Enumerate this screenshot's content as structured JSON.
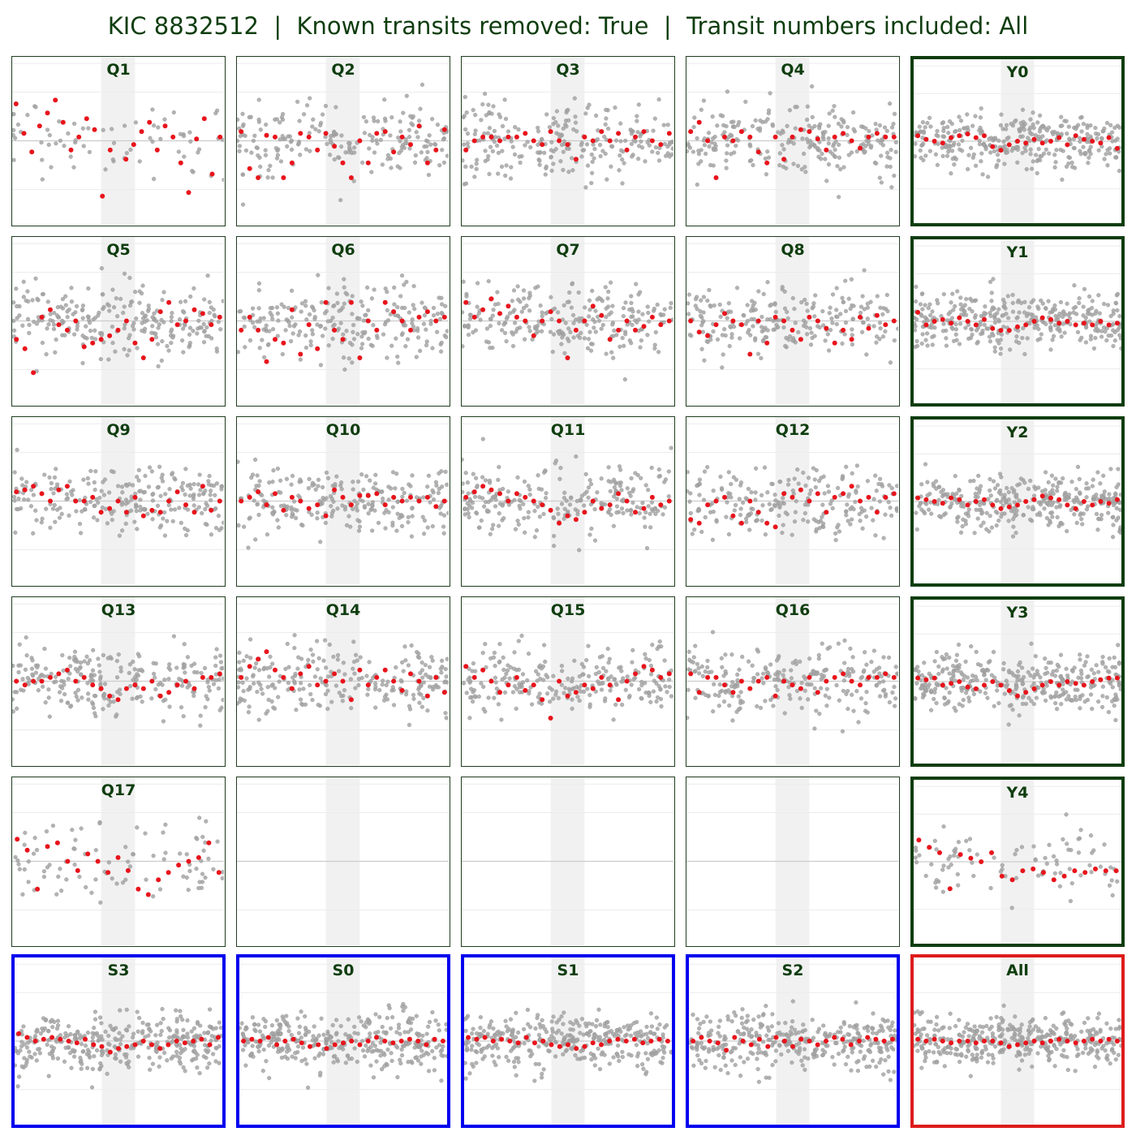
{
  "figure": {
    "title": "KIC 8832512  |  Known transits removed: True  |  Transit numbers included: All"
  },
  "colors": {
    "quarter_border": "#1f3d1f",
    "year_border": "#0f3d0f",
    "season_border": "#0000ee",
    "all_border": "#dd1c1c",
    "title_text": "#0f3d0f",
    "raw_points": "#a6a6a6",
    "binned_points": "#e8141c",
    "transit_band": "#eeeeee",
    "reference_line": "#cccccc"
  },
  "chart_data": {
    "type": "scatter",
    "grid": true,
    "note_axes": "no tick labels shown; shared x (phase) and y (flux) ranges; shaded vertical transit window near x = 0",
    "xlim": [
      -1,
      1
    ],
    "ylim": [
      -1,
      1
    ],
    "transit_window": [
      -0.16,
      0.16
    ],
    "panels": [
      {
        "name": "Q1",
        "group": "quarter",
        "empty": false,
        "raw_count": 70,
        "raw_spread": 0.45,
        "binned": [
          0.2,
          0.04,
          -0.06,
          0.08,
          0.15,
          0.22,
          0.1,
          -0.05,
          0.02,
          0.12,
          0.06,
          -0.3,
          -0.05,
          -0.65,
          -0.1,
          -0.02,
          0.05,
          0.1,
          -0.05,
          0.08,
          0.02,
          -0.12,
          -0.28,
          0.01,
          0.12,
          -0.18,
          0.02
        ]
      },
      {
        "name": "Q2",
        "group": "quarter",
        "empty": false,
        "raw_count": 200,
        "raw_spread": 0.55,
        "binned": [
          0.05,
          -0.15,
          -0.2,
          0.03,
          0.02,
          -0.2,
          -0.12,
          0.04,
          0.02,
          -0.05,
          0.04,
          -0.03,
          -0.12,
          -0.2,
          0.0,
          -0.12,
          0.04,
          0.05,
          -0.06,
          0.02,
          -0.02,
          0.08,
          -0.12,
          -0.05,
          0.06
        ]
      },
      {
        "name": "Q3",
        "group": "quarter",
        "empty": false,
        "raw_count": 240,
        "raw_spread": 0.55,
        "binned": [
          -0.05,
          0.0,
          0.02,
          0.02,
          0.0,
          0.02,
          0.02,
          0.04,
          0.0,
          -0.02,
          0.05,
          0.0,
          -0.02,
          -0.1,
          0.02,
          0.0,
          0.05,
          0.0,
          0.04,
          -0.05,
          0.02,
          0.05,
          0.0,
          -0.02,
          0.04
        ]
      },
      {
        "name": "Q4",
        "group": "quarter",
        "empty": false,
        "raw_count": 240,
        "raw_spread": 0.5,
        "binned": [
          0.05,
          0.1,
          0.0,
          -0.2,
          0.02,
          0.0,
          0.05,
          0.02,
          -0.06,
          -0.12,
          0.02,
          -0.1,
          0.02,
          0.06,
          0.05,
          0.01,
          -0.05,
          0.02,
          0.04,
          0.0,
          -0.04,
          0.02,
          0.04,
          0.02,
          0.02
        ]
      },
      {
        "name": "Y0",
        "group": "year",
        "empty": false,
        "raw_count": 320,
        "raw_spread": 0.4,
        "binned": [
          0.03,
          0.01,
          0.0,
          -0.01,
          0.02,
          0.03,
          0.04,
          0.02,
          0.03,
          -0.03,
          -0.05,
          -0.02,
          0.0,
          -0.01,
          0.01,
          -0.01,
          0.0,
          0.02,
          -0.02,
          0.03,
          0.01,
          0.0,
          -0.01,
          0.02,
          -0.04
        ]
      },
      {
        "name": "Q5",
        "group": "quarter",
        "empty": false,
        "raw_count": 240,
        "raw_spread": 0.55,
        "binned": [
          -0.1,
          -0.15,
          -0.28,
          0.02,
          0.06,
          -0.02,
          -0.05,
          0.0,
          -0.14,
          -0.12,
          -0.1,
          -0.08,
          -0.05,
          0.0,
          -0.12,
          -0.2,
          -0.1,
          0.05,
          0.1,
          -0.02,
          0.0,
          0.06,
          0.04,
          -0.02,
          0.02
        ]
      },
      {
        "name": "Q6",
        "group": "quarter",
        "empty": false,
        "raw_count": 230,
        "raw_spread": 0.55,
        "binned": [
          -0.05,
          0.02,
          -0.05,
          -0.22,
          -0.1,
          -0.12,
          0.06,
          -0.18,
          -0.02,
          -0.15,
          0.1,
          -0.05,
          -0.1,
          0.1,
          -0.2,
          0.0,
          -0.05,
          0.1,
          0.05,
          0.0,
          -0.05,
          0.02,
          0.05,
          0.0,
          0.02
        ]
      },
      {
        "name": "Q7",
        "group": "quarter",
        "empty": false,
        "raw_count": 240,
        "raw_spread": 0.5,
        "binned": [
          0.1,
          0.02,
          0.06,
          0.12,
          0.04,
          0.08,
          0.02,
          0.0,
          -0.08,
          0.0,
          0.05,
          0.0,
          -0.2,
          -0.05,
          0.0,
          0.08,
          0.03,
          -0.1,
          -0.05,
          0.0,
          -0.05,
          -0.03,
          0.02,
          -0.02,
          0.0
        ]
      },
      {
        "name": "Q8",
        "group": "quarter",
        "empty": false,
        "raw_count": 230,
        "raw_spread": 0.5,
        "binned": [
          0.0,
          -0.06,
          -0.08,
          -0.02,
          0.04,
          0.0,
          -0.02,
          -0.18,
          0.0,
          -0.12,
          0.02,
          0.0,
          -0.05,
          -0.1,
          0.02,
          0.0,
          -0.04,
          -0.12,
          -0.05,
          -0.1,
          0.02,
          -0.04,
          0.03,
          -0.02,
          0.0
        ]
      },
      {
        "name": "Y1",
        "group": "year",
        "empty": false,
        "raw_count": 340,
        "raw_spread": 0.42,
        "binned": [
          0.05,
          -0.02,
          0.0,
          0.01,
          -0.01,
          0.02,
          0.0,
          -0.02,
          0.01,
          -0.04,
          -0.05,
          -0.05,
          -0.03,
          -0.02,
          0.0,
          0.02,
          0.01,
          -0.01,
          0.0,
          -0.02,
          -0.01,
          -0.02,
          0.0,
          -0.02,
          -0.01
        ]
      },
      {
        "name": "Q9",
        "group": "quarter",
        "empty": false,
        "raw_count": 240,
        "raw_spread": 0.5,
        "binned": [
          0.05,
          0.06,
          0.08,
          0.04,
          0.0,
          0.06,
          0.08,
          0.0,
          0.0,
          0.02,
          -0.06,
          -0.04,
          0.0,
          -0.06,
          0.02,
          -0.08,
          -0.05,
          -0.06,
          0.0,
          0.05,
          -0.02,
          -0.06,
          0.08,
          -0.05,
          0.0
        ]
      },
      {
        "name": "Q10",
        "group": "quarter",
        "empty": false,
        "raw_count": 240,
        "raw_spread": 0.5,
        "binned": [
          0.0,
          0.02,
          0.05,
          -0.02,
          0.04,
          -0.05,
          0.02,
          0.0,
          -0.04,
          -0.02,
          -0.08,
          0.06,
          0.02,
          -0.02,
          0.03,
          0.03,
          0.04,
          -0.02,
          0.02,
          0.0,
          0.02,
          0.0,
          0.02,
          -0.03,
          0.0
        ]
      },
      {
        "name": "Q11",
        "group": "quarter",
        "empty": false,
        "raw_count": 240,
        "raw_spread": 0.5,
        "binned": [
          0.02,
          0.05,
          0.08,
          0.06,
          0.04,
          0.0,
          0.04,
          0.02,
          0.0,
          -0.02,
          -0.05,
          -0.12,
          -0.08,
          -0.1,
          -0.06,
          0.0,
          -0.04,
          -0.02,
          0.04,
          0.0,
          -0.06,
          -0.04,
          0.02,
          -0.02,
          0.0
        ]
      },
      {
        "name": "Q12",
        "group": "quarter",
        "empty": false,
        "raw_count": 220,
        "raw_spread": 0.5,
        "binned": [
          -0.1,
          -0.12,
          -0.02,
          0.0,
          0.02,
          -0.08,
          -0.12,
          0.0,
          -0.06,
          -0.12,
          -0.14,
          0.04,
          0.02,
          0.06,
          0.0,
          0.04,
          -0.06,
          0.02,
          0.04,
          0.08,
          0.0,
          0.02,
          -0.06,
          0.02,
          0.04
        ]
      },
      {
        "name": "Y2",
        "group": "year",
        "empty": false,
        "raw_count": 340,
        "raw_spread": 0.4,
        "binned": [
          0.02,
          0.01,
          0.0,
          -0.01,
          0.02,
          0.01,
          -0.02,
          0.0,
          0.01,
          -0.02,
          -0.04,
          -0.03,
          -0.02,
          0.0,
          0.01,
          0.03,
          0.02,
          0.01,
          -0.02,
          -0.04,
          0.0,
          -0.02,
          0.0,
          -0.01,
          0.01
        ]
      },
      {
        "name": "Q13",
        "group": "quarter",
        "empty": false,
        "raw_count": 240,
        "raw_spread": 0.5,
        "binned": [
          0.0,
          -0.02,
          0.0,
          0.0,
          0.02,
          0.04,
          0.06,
          0.0,
          0.02,
          -0.02,
          -0.04,
          -0.08,
          -0.1,
          -0.04,
          -0.02,
          -0.04,
          0.0,
          -0.08,
          -0.06,
          -0.02,
          0.0,
          -0.04,
          0.02,
          0.02,
          0.04
        ]
      },
      {
        "name": "Q14",
        "group": "quarter",
        "empty": false,
        "raw_count": 240,
        "raw_spread": 0.5,
        "binned": [
          0.02,
          0.08,
          0.12,
          0.16,
          0.06,
          0.02,
          -0.04,
          0.04,
          0.08,
          -0.02,
          0.0,
          0.04,
          0.0,
          -0.1,
          0.06,
          -0.02,
          0.02,
          0.06,
          0.0,
          -0.05,
          0.04,
          0.0,
          -0.08,
          0.02,
          -0.06
        ]
      },
      {
        "name": "Q15",
        "group": "quarter",
        "empty": false,
        "raw_count": 240,
        "raw_spread": 0.5,
        "binned": [
          0.08,
          0.02,
          0.06,
          0.0,
          -0.06,
          -0.02,
          0.02,
          -0.05,
          -0.02,
          -0.1,
          -0.2,
          0.0,
          -0.08,
          -0.06,
          -0.02,
          -0.04,
          0.02,
          -0.02,
          -0.1,
          0.0,
          0.04,
          0.08,
          0.06,
          0.02,
          0.04
        ]
      },
      {
        "name": "Q16",
        "group": "quarter",
        "empty": false,
        "raw_count": 240,
        "raw_spread": 0.5,
        "binned": [
          0.04,
          -0.06,
          0.02,
          0.02,
          -0.02,
          -0.06,
          0.0,
          -0.04,
          0.0,
          0.02,
          -0.08,
          0.0,
          -0.02,
          -0.04,
          0.02,
          -0.06,
          0.0,
          0.02,
          0.04,
          0.0,
          -0.02,
          0.02,
          0.02,
          0.04,
          0.02
        ]
      },
      {
        "name": "Y3",
        "group": "year",
        "empty": false,
        "raw_count": 340,
        "raw_spread": 0.42,
        "binned": [
          0.02,
          0.01,
          0.02,
          -0.02,
          -0.01,
          0.0,
          -0.03,
          -0.04,
          -0.02,
          0.0,
          -0.02,
          -0.05,
          -0.08,
          -0.06,
          -0.04,
          -0.02,
          0.0,
          -0.02,
          0.0,
          -0.01,
          -0.02,
          0.0,
          0.01,
          0.02,
          0.02
        ]
      },
      {
        "name": "Q17",
        "group": "quarter",
        "empty": false,
        "raw_count": 90,
        "raw_spread": 0.5,
        "binned": [
          0.12,
          0.06,
          -0.15,
          0.08,
          0.1,
          0.0,
          -0.05,
          0.04,
          0.0,
          -0.06,
          0.02,
          -0.05,
          -0.15,
          -0.18,
          -0.1,
          -0.06,
          -0.02,
          0.0,
          0.02,
          0.1,
          -0.06
        ]
      },
      {
        "name": "",
        "group": "quarter",
        "empty": true,
        "raw_count": 0,
        "raw_spread": 0,
        "binned": []
      },
      {
        "name": "",
        "group": "quarter",
        "empty": true,
        "raw_count": 0,
        "raw_spread": 0,
        "binned": []
      },
      {
        "name": "",
        "group": "quarter",
        "empty": true,
        "raw_count": 0,
        "raw_spread": 0,
        "binned": []
      },
      {
        "name": "Y4",
        "group": "year",
        "empty": false,
        "raw_count": 90,
        "raw_spread": 0.5,
        "binned": [
          0.12,
          0.08,
          0.05,
          -0.15,
          0.04,
          0.02,
          0.0,
          0.05,
          -0.08,
          -0.1,
          -0.05,
          -0.04,
          -0.06,
          -0.1,
          -0.08,
          -0.05,
          -0.06,
          -0.04,
          -0.05,
          -0.05
        ]
      },
      {
        "name": "S3",
        "group": "season",
        "empty": false,
        "raw_count": 340,
        "raw_spread": 0.42,
        "binned": [
          0.04,
          0.02,
          0.0,
          0.01,
          0.02,
          0.01,
          0.0,
          -0.01,
          0.01,
          -0.02,
          -0.03,
          -0.06,
          -0.04,
          -0.03,
          -0.02,
          0.0,
          -0.02,
          -0.04,
          -0.02,
          0.0,
          -0.01,
          0.0,
          0.01,
          -0.02,
          0.02
        ]
      },
      {
        "name": "S0",
        "group": "season",
        "empty": false,
        "raw_count": 340,
        "raw_spread": 0.42,
        "binned": [
          0.0,
          0.01,
          0.0,
          0.02,
          -0.02,
          0.0,
          0.01,
          -0.01,
          -0.03,
          -0.02,
          -0.04,
          -0.02,
          -0.01,
          0.0,
          -0.02,
          0.0,
          0.02,
          0.0,
          -0.01,
          0.0,
          0.01,
          0.0,
          -0.02,
          0.01,
          0.0
        ]
      },
      {
        "name": "S1",
        "group": "season",
        "empty": false,
        "raw_count": 340,
        "raw_spread": 0.42,
        "binned": [
          0.02,
          0.01,
          0.02,
          0.0,
          0.01,
          0.0,
          -0.01,
          0.02,
          -0.01,
          0.0,
          -0.02,
          -0.03,
          -0.02,
          -0.04,
          -0.03,
          -0.01,
          -0.02,
          0.0,
          0.01,
          0.0,
          0.01,
          -0.01,
          0.0,
          0.01,
          0.0
        ]
      },
      {
        "name": "S2",
        "group": "season",
        "empty": false,
        "raw_count": 340,
        "raw_spread": 0.42,
        "binned": [
          0.0,
          0.02,
          0.0,
          -0.01,
          -0.05,
          0.02,
          0.0,
          -0.02,
          0.01,
          -0.03,
          0.02,
          0.0,
          -0.03,
          0.01,
          0.0,
          -0.02,
          0.0,
          0.02,
          0.01,
          -0.02,
          0.0,
          0.02,
          0.01,
          0.0,
          0.01
        ]
      },
      {
        "name": "All",
        "group": "all",
        "empty": false,
        "raw_count": 380,
        "raw_spread": 0.36,
        "binned": [
          0.01,
          0.0,
          0.01,
          0.0,
          -0.01,
          0.0,
          0.0,
          -0.01,
          0.0,
          0.0,
          -0.01,
          -0.03,
          -0.02,
          -0.01,
          0.0,
          -0.01,
          0.0,
          0.01,
          0.0,
          -0.01,
          0.0,
          0.01,
          0.0,
          0.01,
          0.0
        ]
      }
    ]
  }
}
